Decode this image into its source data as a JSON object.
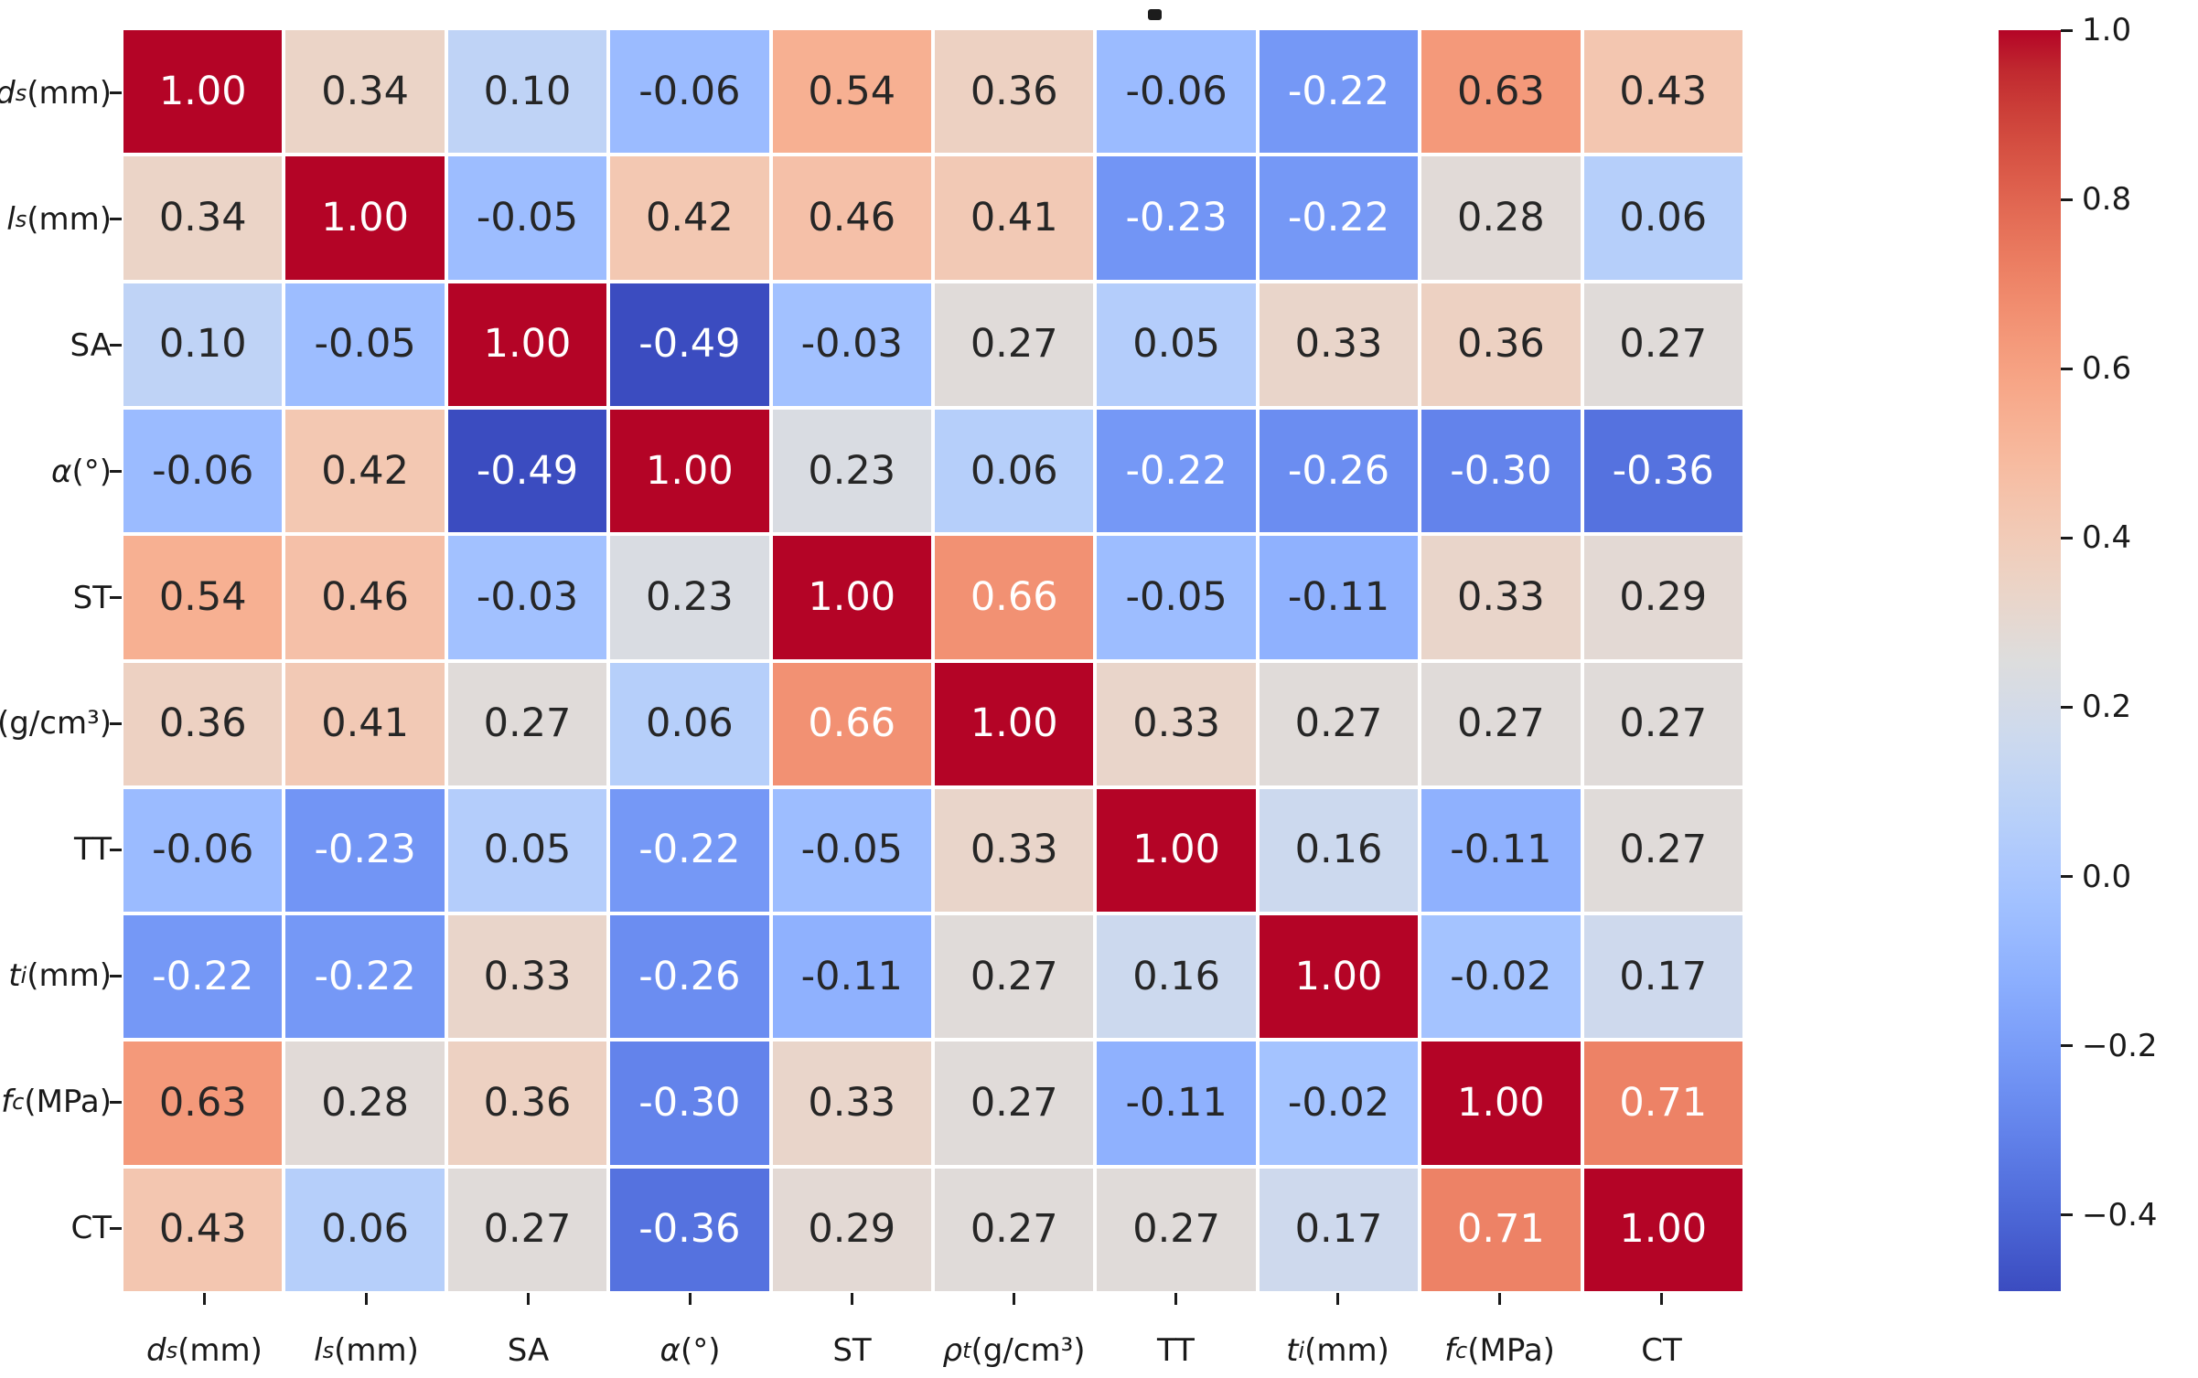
{
  "figure": {
    "background_color": "#ffffff",
    "stray_mark": {
      "present": true,
      "color": "#1c1c1c"
    }
  },
  "chart_data": {
    "type": "heatmap",
    "title": "",
    "colormap": "coolwarm",
    "vmin": -0.49,
    "vmax": 1.0,
    "value_decimals": 2,
    "grid_line_color": "#ffffff",
    "annotation_dark_color": "#262626",
    "annotation_light_color": "#ffffff",
    "luminance_threshold": 0.408,
    "legend_position": "right-colorbar",
    "variables": [
      {
        "base": "d",
        "sub": "s",
        "unit": "(mm)",
        "italic": true
      },
      {
        "base": "l",
        "sub": "s",
        "unit": "(mm)",
        "italic": true
      },
      {
        "base": "SA",
        "sub": "",
        "unit": "",
        "italic": false
      },
      {
        "base": "α",
        "sub": "",
        "unit": "(°)",
        "italic": true
      },
      {
        "base": "ST",
        "sub": "",
        "unit": "",
        "italic": false
      },
      {
        "base": "ρ",
        "sub": "t",
        "unit": "(g/cm³)",
        "italic": true
      },
      {
        "base": "TT",
        "sub": "",
        "unit": "",
        "italic": false
      },
      {
        "base": "t",
        "sub": "i",
        "unit": "(mm)",
        "italic": true
      },
      {
        "base": "f",
        "sub": "c",
        "unit": "(MPa)",
        "italic": true
      },
      {
        "base": "CT",
        "sub": "",
        "unit": "",
        "italic": false
      }
    ],
    "matrix": [
      [
        1.0,
        0.34,
        0.1,
        -0.06,
        0.54,
        0.36,
        -0.06,
        -0.22,
        0.63,
        0.43
      ],
      [
        0.34,
        1.0,
        -0.05,
        0.42,
        0.46,
        0.41,
        -0.23,
        -0.22,
        0.28,
        0.06
      ],
      [
        0.1,
        -0.05,
        1.0,
        -0.49,
        -0.03,
        0.27,
        0.05,
        0.33,
        0.36,
        0.27
      ],
      [
        -0.06,
        0.42,
        -0.49,
        1.0,
        0.23,
        0.06,
        -0.22,
        -0.26,
        -0.3,
        -0.36
      ],
      [
        0.54,
        0.46,
        -0.03,
        0.23,
        1.0,
        0.66,
        -0.05,
        -0.11,
        0.33,
        0.29
      ],
      [
        0.36,
        0.41,
        0.27,
        0.06,
        0.66,
        1.0,
        0.33,
        0.27,
        0.27,
        0.27
      ],
      [
        -0.06,
        -0.23,
        0.05,
        -0.22,
        -0.05,
        0.33,
        1.0,
        0.16,
        -0.11,
        0.27
      ],
      [
        -0.22,
        -0.22,
        0.33,
        -0.26,
        -0.11,
        0.27,
        0.16,
        1.0,
        -0.02,
        0.17
      ],
      [
        0.63,
        0.28,
        0.36,
        -0.3,
        0.33,
        0.27,
        -0.11,
        -0.02,
        1.0,
        0.71
      ],
      [
        0.43,
        0.06,
        0.27,
        -0.36,
        0.29,
        0.27,
        0.27,
        0.17,
        0.71,
        1.0
      ]
    ],
    "colorbar_ticks": [
      {
        "value": 1.0,
        "label": "1.0"
      },
      {
        "value": 0.8,
        "label": "0.8"
      },
      {
        "value": 0.6,
        "label": "0.6"
      },
      {
        "value": 0.4,
        "label": "0.4"
      },
      {
        "value": 0.2,
        "label": "0.2"
      },
      {
        "value": 0.0,
        "label": "0.0"
      },
      {
        "value": -0.2,
        "label": "−0.2"
      },
      {
        "value": -0.4,
        "label": "−0.4"
      }
    ],
    "colormap_stops": [
      "#3B4CC0",
      "#445ACC",
      "#4D68D7",
      "#5775E1",
      "#6282EA",
      "#6C8EF1",
      "#779AF7",
      "#82A5FB",
      "#8DB0FE",
      "#98B9FF",
      "#A3C2FF",
      "#AEC9FD",
      "#B8D0F9",
      "#C2D5F4",
      "#CCD9EE",
      "#D5DBE6",
      "#DDDDDD",
      "#E5D8D1",
      "#ECD3C5",
      "#F1CCB9",
      "#F4C4AD",
      "#F7BBA0",
      "#F7B194",
      "#F7A687",
      "#F49A7B",
      "#F18D6F",
      "#EC7F63",
      "#E57058",
      "#DE604D",
      "#D55042",
      "#CB3E38",
      "#C0282F",
      "#B40426"
    ]
  }
}
